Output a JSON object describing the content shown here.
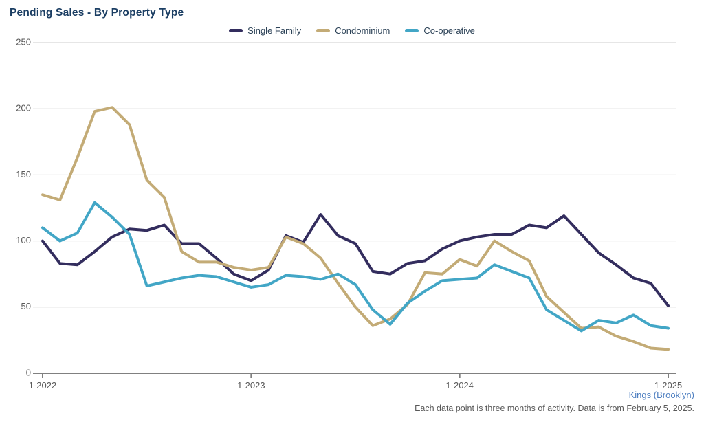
{
  "chart_data": {
    "type": "line",
    "title": "Pending Sales - By Property Type",
    "x_labels": [
      "1-2022",
      "2-2022",
      "3-2022",
      "4-2022",
      "5-2022",
      "6-2022",
      "7-2022",
      "8-2022",
      "9-2022",
      "10-2022",
      "11-2022",
      "12-2022",
      "1-2023",
      "2-2023",
      "3-2023",
      "4-2023",
      "5-2023",
      "6-2023",
      "7-2023",
      "8-2023",
      "9-2023",
      "10-2023",
      "11-2023",
      "12-2023",
      "1-2024",
      "2-2024",
      "3-2024",
      "4-2024",
      "5-2024",
      "6-2024",
      "7-2024",
      "8-2024",
      "9-2024",
      "10-2024",
      "11-2024",
      "12-2024",
      "1-2025"
    ],
    "x_tick_labels": [
      "1-2022",
      "1-2023",
      "1-2024",
      "1-2025"
    ],
    "x_tick_positions": [
      0,
      12,
      24,
      36
    ],
    "y_ticks": [
      0,
      50,
      100,
      150,
      200,
      250
    ],
    "ylim": [
      0,
      250
    ],
    "grid": "horizontal",
    "legend_position": "top-center",
    "series": [
      {
        "name": "Single Family",
        "color": "#332d5e",
        "values": [
          100,
          83,
          82,
          92,
          103,
          109,
          108,
          112,
          98,
          98,
          87,
          75,
          70,
          78,
          104,
          99,
          120,
          104,
          98,
          77,
          75,
          83,
          85,
          94,
          100,
          103,
          105,
          105,
          112,
          110,
          119,
          105,
          91,
          82,
          72,
          68,
          51
        ]
      },
      {
        "name": "Condominium",
        "color": "#c3ab76",
        "values": [
          135,
          131,
          163,
          198,
          201,
          188,
          146,
          133,
          92,
          84,
          84,
          80,
          78,
          80,
          103,
          98,
          87,
          68,
          50,
          36,
          41,
          52,
          76,
          75,
          86,
          81,
          100,
          92,
          85,
          58,
          46,
          34,
          35,
          28,
          24,
          19,
          18
        ]
      },
      {
        "name": "Co-operative",
        "color": "#42a6c6",
        "values": [
          110,
          100,
          106,
          129,
          118,
          105,
          66,
          69,
          72,
          74,
          73,
          69,
          65,
          67,
          74,
          73,
          71,
          75,
          67,
          48,
          37,
          53,
          62,
          70,
          71,
          72,
          82,
          77,
          72,
          48,
          40,
          32,
          40,
          38,
          44,
          36,
          34
        ]
      }
    ],
    "colors": {
      "title_text": "#1b3e63",
      "legend_text": "#2c4257",
      "axis_text": "#595959",
      "gridline": "#cccccc",
      "axis_line": "#808080"
    }
  },
  "footer": {
    "region": "Kings (Brooklyn)",
    "note": "Each data point is three months of activity. Data is from February 5, 2025."
  }
}
